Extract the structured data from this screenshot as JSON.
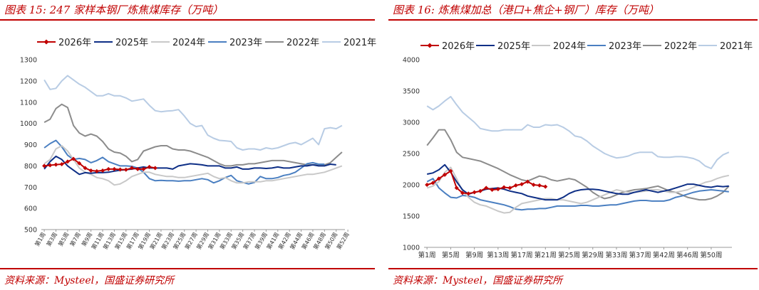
{
  "charts": [
    {
      "title": "图表 15: 247 家样本钢厂炼焦煤库存（万吨）",
      "source": "资料来源：Mysteel，国盛证券研究所",
      "chart_data": {
        "type": "line",
        "title": "247 家样本钢厂炼焦煤库存（万吨）",
        "xlabel": "",
        "ylabel": "",
        "ylim": [
          500,
          1300
        ],
        "yticks": [
          500,
          600,
          700,
          800,
          900,
          1000,
          1100,
          1200,
          1300
        ],
        "x_tick_labels": [
          "第1周",
          "第3周",
          "第5周",
          "第7周",
          "第9周",
          "第11周",
          "第13周",
          "第15周",
          "第17周",
          "第19周",
          "第21周",
          "第23周",
          "第25周",
          "第27周",
          "第29周",
          "第31周",
          "第33周",
          "第35周",
          "第37周",
          "第39周",
          "第41周",
          "第42周",
          "第44周",
          "第46周",
          "第48周",
          "第50周",
          "第52周"
        ],
        "legend_position": "top",
        "grid": false,
        "series": [
          {
            "name": "2026年",
            "color": "#c00000",
            "marker": "diamond",
            "values": [
              800,
              803,
              806,
              808,
              820,
              833,
              812,
              790,
              778,
              775,
              778,
              785,
              785,
              783,
              782,
              790,
              785,
              785,
              795,
              790
            ]
          },
          {
            "name": "2025年",
            "color": "#0e2f86",
            "values": [
              785,
              820,
              845,
              830,
              800,
              780,
              760,
              768,
              765,
              768,
              768,
              770,
              775,
              780,
              782,
              785,
              790,
              795,
              790,
              790,
              790,
              790,
              785,
              800,
              805,
              810,
              808,
              805,
              800,
              800,
              800,
              790,
              790,
              795,
              785,
              785,
              790,
              790,
              788,
              790,
              795,
              790,
              790,
              795,
              800,
              800,
              805,
              800,
              800,
              808,
              805
            ]
          },
          {
            "name": "2024年",
            "color": "#c8c8c8",
            "values": [
              810,
              830,
              880,
              895,
              870,
              830,
              790,
              770,
              760,
              745,
              740,
              730,
              710,
              715,
              730,
              750,
              760,
              770,
              770,
              760,
              755,
              750,
              750,
              745,
              745,
              750,
              755,
              760,
              765,
              750,
              740,
              745,
              730,
              720,
              720,
              725,
              725,
              725,
              730,
              730,
              735,
              740,
              745,
              750,
              755,
              760,
              760,
              765,
              770,
              780,
              790,
              800
            ]
          },
          {
            "name": "2023年",
            "color": "#4a7fc1",
            "values": [
              885,
              905,
              920,
              890,
              850,
              830,
              835,
              830,
              815,
              825,
              840,
              820,
              810,
              800,
              800,
              798,
              790,
              770,
              740,
              730,
              732,
              730,
              730,
              728,
              730,
              730,
              735,
              740,
              735,
              720,
              730,
              745,
              755,
              730,
              722,
              715,
              722,
              750,
              740,
              740,
              745,
              755,
              760,
              770,
              790,
              810,
              815,
              808,
              808
            ]
          },
          {
            "name": "2022年",
            "color": "#8c8c8c",
            "values": [
              1005,
              1020,
              1070,
              1090,
              1075,
              990,
              955,
              940,
              950,
              940,
              915,
              880,
              865,
              860,
              845,
              820,
              830,
              870,
              880,
              890,
              895,
              895,
              880,
              875,
              875,
              870,
              860,
              850,
              840,
              825,
              810,
              800,
              800,
              805,
              805,
              810,
              810,
              815,
              820,
              825,
              825,
              825,
              820,
              815,
              810,
              805,
              805,
              805,
              805,
              815,
              840,
              865
            ]
          },
          {
            "name": "2021年",
            "color": "#b8cce4",
            "values": [
              1205,
              1160,
              1165,
              1200,
              1225,
              1205,
              1185,
              1170,
              1150,
              1130,
              1130,
              1140,
              1130,
              1130,
              1120,
              1105,
              1110,
              1115,
              1085,
              1060,
              1055,
              1058,
              1060,
              1065,
              1035,
              1000,
              985,
              990,
              945,
              930,
              920,
              918,
              915,
              885,
              875,
              880,
              880,
              875,
              885,
              880,
              885,
              895,
              905,
              910,
              900,
              915,
              930,
              900,
              975,
              980,
              975,
              990
            ]
          }
        ]
      }
    },
    {
      "title": "图表 16: 炼焦煤加总（港口+焦企+钢厂）库存（万吨）",
      "source": "资料来源：Mysteel，国盛证券研究所",
      "chart_data": {
        "type": "line",
        "title": "炼焦煤加总（港口+焦企+钢厂）库存（万吨）",
        "xlabel": "",
        "ylabel": "",
        "ylim": [
          1000,
          4000
        ],
        "yticks": [
          1000,
          1500,
          2000,
          2500,
          3000,
          3500,
          4000
        ],
        "x_tick_labels": [
          "第1周",
          "第5周",
          "第9周",
          "第13周",
          "第17周",
          "第21周",
          "第25周",
          "第29周",
          "第33周",
          "第37周",
          "第42周",
          "第46周",
          "第50周"
        ],
        "legend_position": "top",
        "grid": false,
        "series": [
          {
            "name": "2026年",
            "color": "#c00000",
            "marker": "diamond",
            "values": [
              2000,
              2030,
              2100,
              2160,
              2220,
              1950,
              1870,
              1860,
              1880,
              1900,
              1950,
              1920,
              1930,
              1960,
              1950,
              1990,
              2010,
              2050,
              2000,
              1990,
              1970
            ]
          },
          {
            "name": "2025年",
            "color": "#0e2f86",
            "values": [
              2170,
              2190,
              2240,
              2320,
              2200,
              2050,
              1920,
              1850,
              1880,
              1900,
              1930,
              1940,
              1950,
              1930,
              1900,
              1880,
              1860,
              1820,
              1800,
              1780,
              1760,
              1760,
              1760,
              1800,
              1860,
              1900,
              1920,
              1930,
              1930,
              1920,
              1900,
              1880,
              1860,
              1850,
              1850,
              1880,
              1900,
              1920,
              1900,
              1880,
              1900,
              1920,
              1950,
              1980,
              2010,
              2010,
              1990,
              1970,
              1960,
              1980,
              1970,
              1980
            ]
          },
          {
            "name": "2024年",
            "color": "#c8c8c8",
            "values": [
              1950,
              1980,
              2050,
              2200,
              2280,
              2100,
              1900,
              1800,
              1720,
              1680,
              1660,
              1620,
              1580,
              1550,
              1560,
              1640,
              1700,
              1720,
              1740,
              1760,
              1780,
              1780,
              1760,
              1760,
              1740,
              1720,
              1700,
              1720,
              1760,
              1800,
              1840,
              1880,
              1920,
              1900,
              1880,
              1880,
              1890,
              1900,
              1920,
              1920,
              1900,
              1880,
              1880,
              1900,
              1920,
              1960,
              2000,
              2040,
              2060,
              2100,
              2130,
              2150
            ]
          },
          {
            "name": "2023年",
            "color": "#4a7fc1",
            "values": [
              2050,
              2100,
              1950,
              1870,
              1800,
              1790,
              1830,
              1820,
              1800,
              1760,
              1740,
              1720,
              1700,
              1680,
              1650,
              1610,
              1600,
              1610,
              1610,
              1620,
              1620,
              1640,
              1660,
              1660,
              1660,
              1660,
              1670,
              1670,
              1660,
              1660,
              1670,
              1680,
              1680,
              1700,
              1720,
              1740,
              1750,
              1750,
              1740,
              1740,
              1740,
              1760,
              1800,
              1820,
              1850,
              1880,
              1900,
              1910,
              1920,
              1910,
              1900,
              1890
            ]
          },
          {
            "name": "2022年",
            "color": "#8c8c8c",
            "values": [
              2630,
              2750,
              2880,
              2880,
              2720,
              2520,
              2440,
              2420,
              2400,
              2380,
              2340,
              2300,
              2260,
              2210,
              2160,
              2120,
              2080,
              2060,
              2100,
              2140,
              2120,
              2080,
              2060,
              2080,
              2100,
              2080,
              2020,
              1960,
              1880,
              1820,
              1780,
              1800,
              1840,
              1880,
              1900,
              1920,
              1930,
              1940,
              1960,
              1980,
              1940,
              1900,
              1880,
              1840,
              1800,
              1780,
              1760,
              1760,
              1780,
              1820,
              1880,
              1980
            ]
          },
          {
            "name": "2021年",
            "color": "#b8cce4",
            "values": [
              3260,
              3200,
              3260,
              3340,
              3410,
              3280,
              3160,
              3080,
              3000,
              2900,
              2880,
              2860,
              2860,
              2880,
              2880,
              2880,
              2880,
              2960,
              2920,
              2920,
              2960,
              2950,
              2960,
              2920,
              2860,
              2780,
              2760,
              2700,
              2620,
              2560,
              2500,
              2460,
              2430,
              2440,
              2460,
              2500,
              2520,
              2520,
              2520,
              2450,
              2440,
              2440,
              2450,
              2450,
              2440,
              2420,
              2380,
              2300,
              2260,
              2400,
              2480,
              2520
            ]
          }
        ]
      }
    }
  ]
}
